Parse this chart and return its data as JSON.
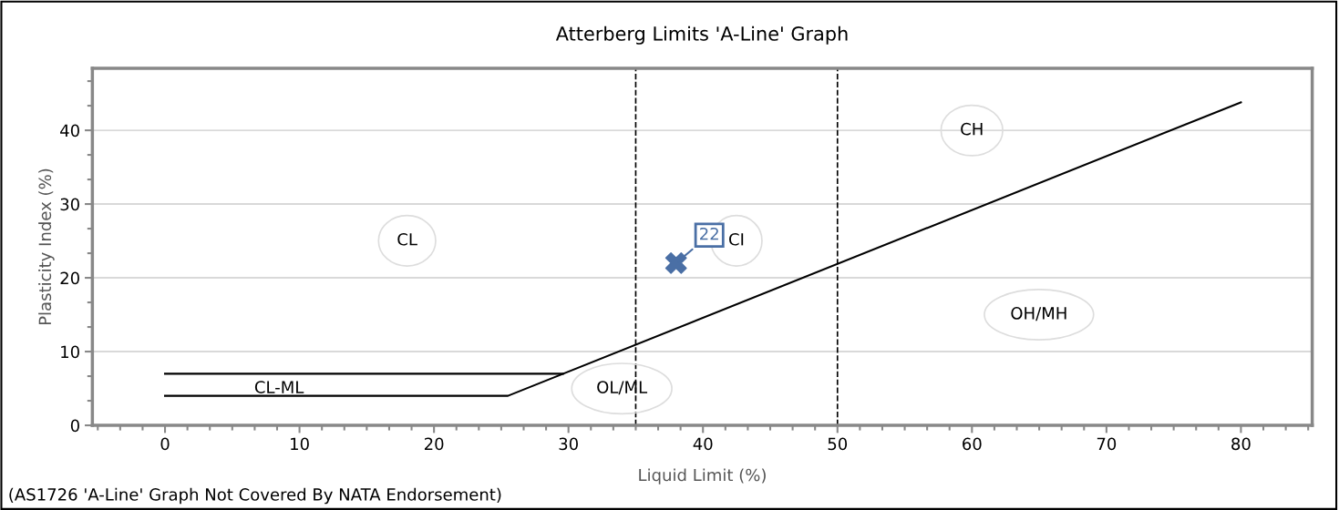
{
  "chart_data": {
    "type": "line",
    "title": "Atterberg Limits 'A-Line' Graph",
    "xlabel": "Liquid Limit (%)",
    "ylabel": "Plasticity Index (%)",
    "xlim": [
      -5.4,
      85.3
    ],
    "xticks": [
      0,
      10,
      20,
      30,
      40,
      50,
      60,
      70,
      80
    ],
    "ylim": [
      0,
      48.4
    ],
    "yticks": [
      0,
      10,
      20,
      30,
      40
    ],
    "grid": "y",
    "series": [
      {
        "color": "#000000",
        "x": [
          0,
          25.5,
          80
        ],
        "values": [
          4,
          4,
          43.8
        ],
        "marker": "none",
        "line_style": "solid"
      },
      {
        "color": "#000000",
        "x": [
          0,
          29.6
        ],
        "values": [
          7,
          7
        ],
        "marker": "none",
        "line_style": "solid"
      },
      {
        "type": "scatter",
        "color": "#4a6fa5",
        "x": [
          38
        ],
        "values": [
          22
        ],
        "marker": "cross",
        "data_labels": true
      }
    ],
    "ref_lines": [
      {
        "axis": "x",
        "value": 35,
        "color": "#000000",
        "line_style": "dashed"
      },
      {
        "axis": "x",
        "value": 50,
        "color": "#000000",
        "line_style": "dashed"
      }
    ],
    "annotations": [
      "CL",
      "CI",
      "CH",
      "OH/MH",
      "OL/ML",
      "CL-ML",
      "(AS1726 'A-Line' Graph Not Covered By NATA Endorsement)"
    ]
  }
}
